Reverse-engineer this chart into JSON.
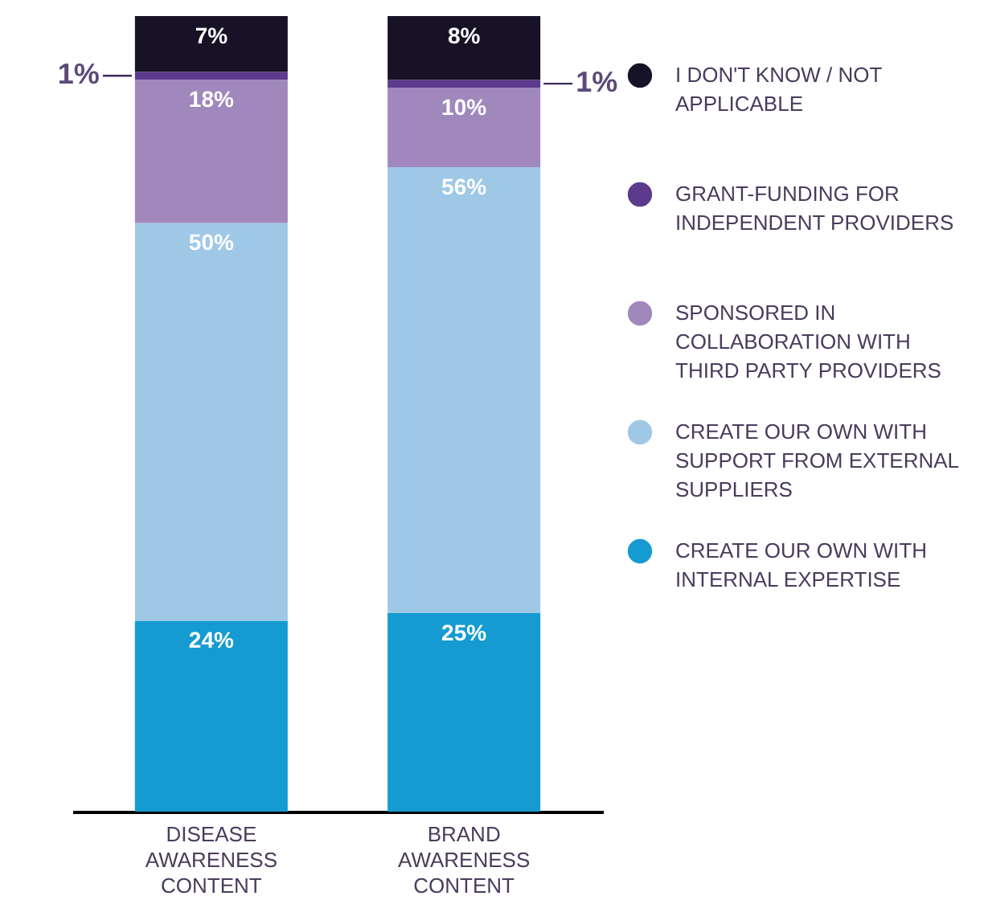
{
  "chart_data": {
    "type": "bar",
    "stacked": true,
    "categories": [
      "DISEASE AWARENESS CONTENT",
      "BRAND AWARENESS CONTENT"
    ],
    "ylim": [
      0,
      100
    ],
    "tick_labels": "x",
    "grid": false,
    "legend": "right",
    "series": [
      {
        "name": "CREATE OUR OWN WITH INTERNAL EXPERTISE",
        "color": "#159bd2",
        "values": [
          24,
          25
        ],
        "value_labels": [
          "24%",
          "25%"
        ]
      },
      {
        "name": "CREATE OUR OWN WITH SUPPORT FROM EXTERNAL SUPPLIERS",
        "color": "#9fc8e6",
        "values": [
          50,
          56
        ],
        "value_labels": [
          "50%",
          "56%"
        ]
      },
      {
        "name": "SPONSORED IN COLLABORATION WITH THIRD PARTY PROVIDERS",
        "color": "#a088bd",
        "values": [
          18,
          10
        ],
        "value_labels": [
          "18%",
          "10%"
        ]
      },
      {
        "name": "GRANT-FUNDING FOR INDEPENDENT PROVIDERS",
        "color": "#5c3a8c",
        "values": [
          1,
          1
        ],
        "value_labels": [
          "1%",
          "1%"
        ]
      },
      {
        "name": "I DON'T KNOW / NOT APPLICABLE",
        "color": "#181226",
        "values": [
          7,
          8
        ],
        "value_labels": [
          "7%",
          "8%"
        ]
      }
    ]
  }
}
